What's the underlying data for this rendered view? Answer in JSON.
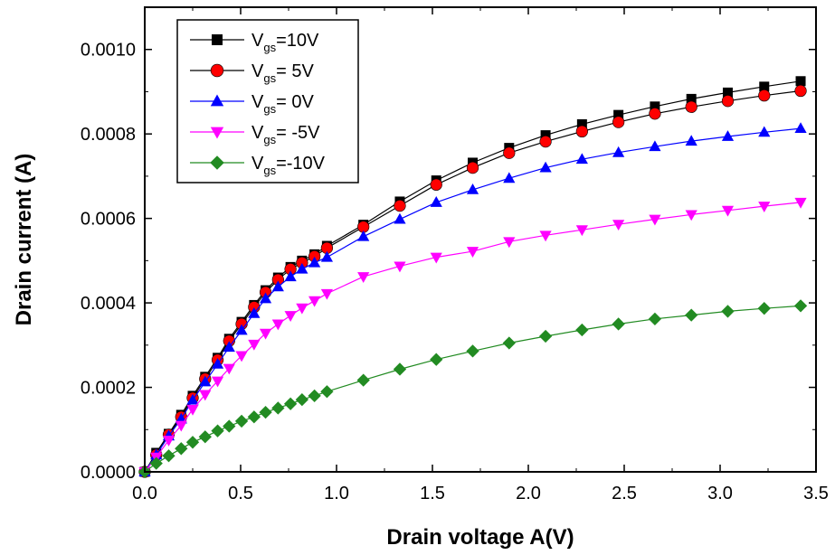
{
  "chart_data": {
    "type": "line",
    "xlabel": "Drain voltage A(V)",
    "ylabel": "Drain current (A)",
    "xlim": [
      0.0,
      3.5
    ],
    "ylim": [
      0.0,
      0.0011
    ],
    "x_ticks": [
      "0.0",
      "0.5",
      "1.0",
      "1.5",
      "2.0",
      "2.5",
      "3.0",
      "3.5"
    ],
    "y_ticks": [
      "0.0000",
      "0.0002",
      "0.0004",
      "0.0006",
      "0.0008",
      "0.0010"
    ],
    "legend_position": "top-left",
    "grid": false,
    "series": [
      {
        "name": "Vgs=10V",
        "legend_main": "V",
        "legend_sub": "gs",
        "legend_rest": "=10V",
        "color": "#000000",
        "line_color": "#000000",
        "marker": "square",
        "x": [
          0.0,
          0.06,
          0.125,
          0.19,
          0.25,
          0.315,
          0.38,
          0.44,
          0.505,
          0.57,
          0.63,
          0.695,
          0.76,
          0.82,
          0.885,
          0.95,
          1.14,
          1.33,
          1.52,
          1.71,
          1.9,
          2.09,
          2.28,
          2.47,
          2.66,
          2.85,
          3.04,
          3.23,
          3.42
        ],
        "y": [
          0.0,
          4.5e-05,
          9e-05,
          0.000135,
          0.00018,
          0.000225,
          0.00027,
          0.000315,
          0.000355,
          0.000395,
          0.00043,
          0.00046,
          0.000485,
          0.0005,
          0.000515,
          0.000535,
          0.000585,
          0.00064,
          0.00069,
          0.000732,
          0.000767,
          0.000797,
          0.000823,
          0.000845,
          0.000865,
          0.000883,
          0.000898,
          0.000912,
          0.000925
        ]
      },
      {
        "name": "Vgs= 5V",
        "legend_main": "V",
        "legend_sub": "gs",
        "legend_rest": "=  5V",
        "color": "#ff0000",
        "line_color": "#000000",
        "marker": "circle",
        "x": [
          0.0,
          0.06,
          0.125,
          0.19,
          0.25,
          0.315,
          0.38,
          0.44,
          0.505,
          0.57,
          0.63,
          0.695,
          0.76,
          0.82,
          0.885,
          0.95,
          1.14,
          1.33,
          1.52,
          1.71,
          1.9,
          2.09,
          2.28,
          2.47,
          2.66,
          2.85,
          3.04,
          3.23,
          3.42
        ],
        "y": [
          0.0,
          4e-05,
          8.8e-05,
          0.00013,
          0.000175,
          0.00022,
          0.000265,
          0.00031,
          0.00035,
          0.00039,
          0.000425,
          0.000455,
          0.00048,
          0.000495,
          0.00051,
          0.00053,
          0.00058,
          0.00063,
          0.00068,
          0.00072,
          0.000755,
          0.000782,
          0.000806,
          0.000828,
          0.000848,
          0.000864,
          0.000878,
          0.000891,
          0.000902
        ]
      },
      {
        "name": "Vgs= 0V",
        "legend_main": "V",
        "legend_sub": "gs",
        "legend_rest": "=  0V",
        "color": "#0000ff",
        "line_color": "#0000ff",
        "marker": "triangle-up",
        "x": [
          0.0,
          0.06,
          0.125,
          0.19,
          0.25,
          0.315,
          0.38,
          0.44,
          0.505,
          0.57,
          0.63,
          0.695,
          0.76,
          0.82,
          0.885,
          0.95,
          1.14,
          1.33,
          1.52,
          1.71,
          1.9,
          2.09,
          2.28,
          2.47,
          2.66,
          2.85,
          3.04,
          3.23,
          3.42
        ],
        "y": [
          0.0,
          4e-05,
          8.5e-05,
          0.000125,
          0.00017,
          0.000213,
          0.000255,
          0.000295,
          0.000335,
          0.000375,
          0.00041,
          0.000438,
          0.000462,
          0.00048,
          0.000495,
          0.000508,
          0.000557,
          0.000598,
          0.000638,
          0.000668,
          0.000695,
          0.00072,
          0.00074,
          0.000756,
          0.00077,
          0.000783,
          0.000794,
          0.000804,
          0.000813
        ]
      },
      {
        "name": "Vgs= -5V",
        "legend_main": "V",
        "legend_sub": "gs",
        "legend_rest": "= -5V",
        "color": "#ff00ff",
        "line_color": "#ff00ff",
        "marker": "triangle-down",
        "x": [
          0.0,
          0.06,
          0.125,
          0.19,
          0.25,
          0.315,
          0.38,
          0.44,
          0.505,
          0.57,
          0.63,
          0.695,
          0.76,
          0.82,
          0.885,
          0.95,
          1.14,
          1.33,
          1.52,
          1.71,
          1.9,
          2.09,
          2.28,
          2.47,
          2.66,
          2.85,
          3.04,
          3.23,
          3.42
        ],
        "y": [
          0.0,
          3.5e-05,
          7.5e-05,
          0.00011,
          0.000148,
          0.000183,
          0.000215,
          0.000245,
          0.000275,
          0.000302,
          0.000328,
          0.00035,
          0.00037,
          0.000388,
          0.000405,
          0.000422,
          0.000462,
          0.000487,
          0.000508,
          0.000522,
          0.000545,
          0.00056,
          0.000573,
          0.000586,
          0.000598,
          0.000609,
          0.000619,
          0.000629,
          0.000638
        ]
      },
      {
        "name": "Vgs=-10V",
        "legend_main": "V",
        "legend_sub": "gs",
        "legend_rest": "=-10V",
        "color": "#228b22",
        "line_color": "#228b22",
        "marker": "diamond",
        "x": [
          0.0,
          0.06,
          0.125,
          0.19,
          0.25,
          0.315,
          0.38,
          0.44,
          0.505,
          0.57,
          0.63,
          0.695,
          0.76,
          0.82,
          0.885,
          0.95,
          1.14,
          1.33,
          1.52,
          1.71,
          1.9,
          2.09,
          2.28,
          2.47,
          2.66,
          2.85,
          3.04,
          3.23,
          3.42
        ],
        "y": [
          0.0,
          2e-05,
          3.8e-05,
          5.5e-05,
          7e-05,
          8.3e-05,
          9.7e-05,
          0.000108,
          0.00012,
          0.00013,
          0.000141,
          0.000151,
          0.000161,
          0.000171,
          0.00018,
          0.00019,
          0.000217,
          0.000243,
          0.000266,
          0.000286,
          0.000305,
          0.000321,
          0.000336,
          0.00035,
          0.000362,
          0.000371,
          0.00038,
          0.000387,
          0.000393
        ]
      }
    ]
  }
}
